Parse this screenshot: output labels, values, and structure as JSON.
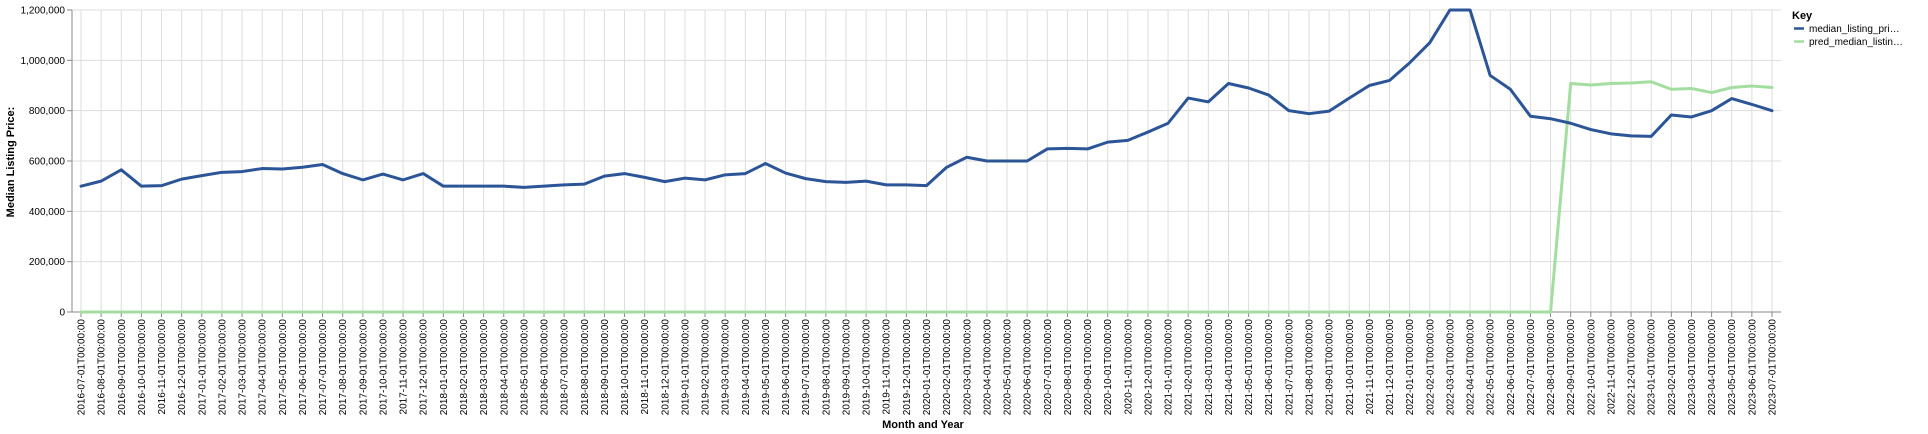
{
  "chart_data": {
    "type": "line",
    "xlabel": "Month and Year",
    "ylabel": "Median Listing Price:",
    "ylim": [
      0,
      1200000
    ],
    "yticks": [
      "0",
      "200,000",
      "400,000",
      "600,000",
      "800,000",
      "1,000,000",
      "1,200,000"
    ],
    "grid": true,
    "legend": {
      "title": "Key",
      "placement": "top-right",
      "entries": [
        "median_listing_pri…",
        "pred_median_listin…"
      ]
    },
    "x": [
      "2016-07-01T00:00:00",
      "2016-08-01T00:00:00",
      "2016-09-01T00:00:00",
      "2016-10-01T00:00:00",
      "2016-11-01T00:00:00",
      "2016-12-01T00:00:00",
      "2017-01-01T00:00:00",
      "2017-02-01T00:00:00",
      "2017-03-01T00:00:00",
      "2017-04-01T00:00:00",
      "2017-05-01T00:00:00",
      "2017-06-01T00:00:00",
      "2017-07-01T00:00:00",
      "2017-08-01T00:00:00",
      "2017-09-01T00:00:00",
      "2017-10-01T00:00:00",
      "2017-11-01T00:00:00",
      "2017-12-01T00:00:00",
      "2018-01-01T00:00:00",
      "2018-02-01T00:00:00",
      "2018-03-01T00:00:00",
      "2018-04-01T00:00:00",
      "2018-05-01T00:00:00",
      "2018-06-01T00:00:00",
      "2018-07-01T00:00:00",
      "2018-08-01T00:00:00",
      "2018-09-01T00:00:00",
      "2018-10-01T00:00:00",
      "2018-11-01T00:00:00",
      "2018-12-01T00:00:00",
      "2019-01-01T00:00:00",
      "2019-02-01T00:00:00",
      "2019-03-01T00:00:00",
      "2019-04-01T00:00:00",
      "2019-05-01T00:00:00",
      "2019-06-01T00:00:00",
      "2019-07-01T00:00:00",
      "2019-08-01T00:00:00",
      "2019-09-01T00:00:00",
      "2019-10-01T00:00:00",
      "2019-11-01T00:00:00",
      "2019-12-01T00:00:00",
      "2020-01-01T00:00:00",
      "2020-02-01T00:00:00",
      "2020-03-01T00:00:00",
      "2020-04-01T00:00:00",
      "2020-05-01T00:00:00",
      "2020-06-01T00:00:00",
      "2020-07-01T00:00:00",
      "2020-08-01T00:00:00",
      "2020-09-01T00:00:00",
      "2020-10-01T00:00:00",
      "2020-11-01T00:00:00",
      "2020-12-01T00:00:00",
      "2021-01-01T00:00:00",
      "2021-02-01T00:00:00",
      "2021-03-01T00:00:00",
      "2021-04-01T00:00:00",
      "2021-05-01T00:00:00",
      "2021-06-01T00:00:00",
      "2021-07-01T00:00:00",
      "2021-08-01T00:00:00",
      "2021-09-01T00:00:00",
      "2021-10-01T00:00:00",
      "2021-11-01T00:00:00",
      "2021-12-01T00:00:00",
      "2022-01-01T00:00:00",
      "2022-02-01T00:00:00",
      "2022-03-01T00:00:00",
      "2022-04-01T00:00:00",
      "2022-05-01T00:00:00",
      "2022-06-01T00:00:00",
      "2022-07-01T00:00:00",
      "2022-08-01T00:00:00",
      "2022-09-01T00:00:00",
      "2022-10-01T00:00:00",
      "2022-11-01T00:00:00",
      "2022-12-01T00:00:00",
      "2023-01-01T00:00:00",
      "2023-02-01T00:00:00",
      "2023-03-01T00:00:00",
      "2023-04-01T00:00:00",
      "2023-05-01T00:00:00",
      "2023-06-01T00:00:00",
      "2023-07-01T00:00:00"
    ],
    "series": [
      {
        "name": "median_listing_pri…",
        "color": "#2c5597",
        "values": [
          500000,
          520000,
          565000,
          500000,
          502000,
          528000,
          542000,
          555000,
          558000,
          570000,
          568000,
          575000,
          586000,
          550000,
          525000,
          548000,
          525000,
          550000,
          500000,
          500000,
          500000,
          500000,
          495000,
          500000,
          505000,
          508000,
          540000,
          550000,
          535000,
          518000,
          532000,
          525000,
          545000,
          550000,
          590000,
          552000,
          530000,
          518000,
          515000,
          520000,
          505000,
          505000,
          502000,
          575000,
          615000,
          600000,
          600000,
          600000,
          648000,
          650000,
          648000,
          675000,
          682000,
          715000,
          750000,
          850000,
          835000,
          908000,
          890000,
          862000,
          800000,
          788000,
          798000,
          850000,
          900000,
          920000,
          990000,
          1070000,
          1200000,
          1200000,
          940000,
          885000,
          778000,
          768000,
          750000,
          725000,
          708000,
          700000,
          698000,
          783000,
          775000,
          800000,
          848000,
          825000,
          800000
        ]
      },
      {
        "name": "pred_median_listin…",
        "color": "#a3dea0",
        "values": [
          0,
          0,
          0,
          0,
          0,
          0,
          0,
          0,
          0,
          0,
          0,
          0,
          0,
          0,
          0,
          0,
          0,
          0,
          0,
          0,
          0,
          0,
          0,
          0,
          0,
          0,
          0,
          0,
          0,
          0,
          0,
          0,
          0,
          0,
          0,
          0,
          0,
          0,
          0,
          0,
          0,
          0,
          0,
          0,
          0,
          0,
          0,
          0,
          0,
          0,
          0,
          0,
          0,
          0,
          0,
          0,
          0,
          0,
          0,
          0,
          0,
          0,
          0,
          0,
          0,
          0,
          0,
          0,
          0,
          0,
          0,
          0,
          0,
          0,
          908000,
          902000,
          908000,
          910000,
          915000,
          885000,
          888000,
          872000,
          892000,
          898000,
          892000
        ]
      }
    ]
  }
}
